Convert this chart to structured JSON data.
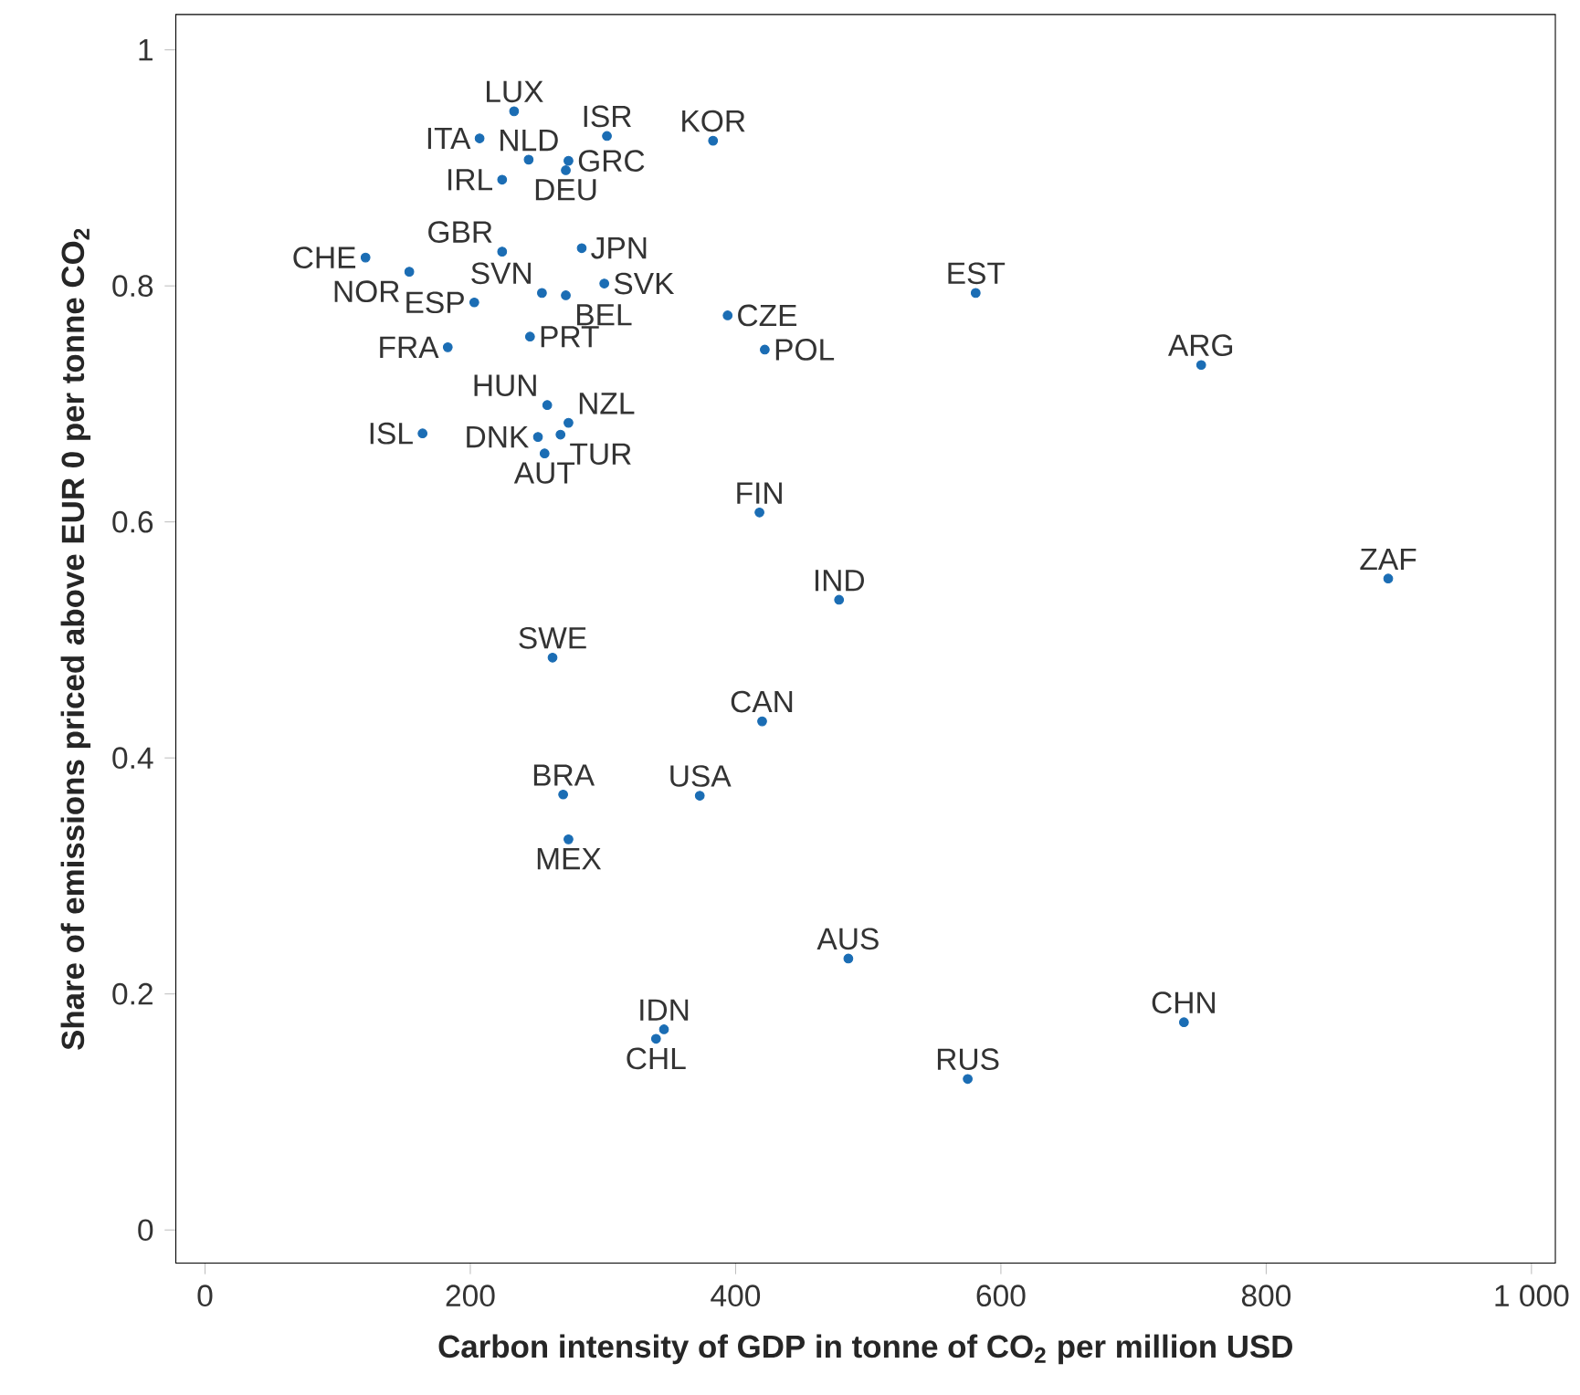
{
  "chart_data": {
    "type": "scatter",
    "xlabel": "Carbon intensity of GDP in tonne of CO$_{2}$ per million USD",
    "ylabel": "Share of emissions priced above EUR 0 per tonne CO$_{2}$",
    "xlim": [
      -22,
      1018
    ],
    "ylim": [
      -0.028,
      1.03
    ],
    "xticks": [
      0,
      200,
      400,
      600,
      800,
      {
        "value": 1000,
        "label": "1 000"
      }
    ],
    "yticks": [
      0,
      0.2,
      0.4,
      0.6,
      0.8,
      1
    ],
    "marker": "circle",
    "grid": false,
    "series": [
      {
        "color": "#1b6db4",
        "x": [
          233,
          207,
          244,
          303,
          383,
          274,
          272,
          224,
          121,
          224,
          284,
          154,
          301,
          254,
          272,
          203,
          394,
          183,
          245,
          422,
          258,
          274,
          164,
          251,
          268,
          256,
          418,
          581,
          751,
          478,
          892,
          262,
          420,
          270,
          373,
          274,
          485,
          346,
          340,
          575,
          738
        ],
        "values": [
          0.948,
          0.925,
          0.907,
          0.927,
          0.923,
          0.906,
          0.898,
          0.89,
          0.824,
          0.829,
          0.832,
          0.812,
          0.802,
          0.794,
          0.792,
          0.786,
          0.775,
          0.748,
          0.757,
          0.746,
          0.699,
          0.684,
          0.675,
          0.672,
          0.674,
          0.658,
          0.608,
          0.794,
          0.733,
          0.534,
          0.552,
          0.485,
          0.431,
          0.369,
          0.368,
          0.331,
          0.23,
          0.17,
          0.162,
          0.128,
          0.176
        ]
      }
    ],
    "annotations": [
      {
        "text": "LUX",
        "x": 233,
        "y": 0.948
      },
      {
        "text": "ITA",
        "x": 207,
        "y": 0.925
      },
      {
        "text": "NLD",
        "x": 244,
        "y": 0.907
      },
      {
        "text": "ISR",
        "x": 303,
        "y": 0.927
      },
      {
        "text": "KOR",
        "x": 383,
        "y": 0.923
      },
      {
        "text": "GRC",
        "x": 274,
        "y": 0.906
      },
      {
        "text": "DEU",
        "x": 272,
        "y": 0.898
      },
      {
        "text": "IRL",
        "x": 224,
        "y": 0.89
      },
      {
        "text": "CHE",
        "x": 121,
        "y": 0.824
      },
      {
        "text": "GBR",
        "x": 224,
        "y": 0.829
      },
      {
        "text": "JPN",
        "x": 284,
        "y": 0.832
      },
      {
        "text": "NOR",
        "x": 154,
        "y": 0.812
      },
      {
        "text": "SVK",
        "x": 301,
        "y": 0.802
      },
      {
        "text": "SVN",
        "x": 254,
        "y": 0.794
      },
      {
        "text": "BEL",
        "x": 272,
        "y": 0.792
      },
      {
        "text": "ESP",
        "x": 203,
        "y": 0.786
      },
      {
        "text": "CZE",
        "x": 394,
        "y": 0.775
      },
      {
        "text": "FRA",
        "x": 183,
        "y": 0.748
      },
      {
        "text": "PRT",
        "x": 245,
        "y": 0.757
      },
      {
        "text": "POL",
        "x": 422,
        "y": 0.746
      },
      {
        "text": "HUN",
        "x": 258,
        "y": 0.699
      },
      {
        "text": "NZL",
        "x": 274,
        "y": 0.684
      },
      {
        "text": "ISL",
        "x": 164,
        "y": 0.675
      },
      {
        "text": "DNK",
        "x": 251,
        "y": 0.672
      },
      {
        "text": "TUR",
        "x": 268,
        "y": 0.674
      },
      {
        "text": "AUT",
        "x": 256,
        "y": 0.658
      },
      {
        "text": "FIN",
        "x": 418,
        "y": 0.608
      },
      {
        "text": "EST",
        "x": 581,
        "y": 0.794
      },
      {
        "text": "ARG",
        "x": 751,
        "y": 0.733
      },
      {
        "text": "IND",
        "x": 478,
        "y": 0.534
      },
      {
        "text": "ZAF",
        "x": 892,
        "y": 0.552
      },
      {
        "text": "SWE",
        "x": 262,
        "y": 0.485
      },
      {
        "text": "CAN",
        "x": 420,
        "y": 0.431
      },
      {
        "text": "BRA",
        "x": 270,
        "y": 0.369
      },
      {
        "text": "USA",
        "x": 373,
        "y": 0.368
      },
      {
        "text": "MEX",
        "x": 274,
        "y": 0.331
      },
      {
        "text": "AUS",
        "x": 485,
        "y": 0.23
      },
      {
        "text": "IDN",
        "x": 346,
        "y": 0.17
      },
      {
        "text": "CHL",
        "x": 340,
        "y": 0.162
      },
      {
        "text": "RUS",
        "x": 575,
        "y": 0.128
      },
      {
        "text": "CHN",
        "x": 738,
        "y": 0.176
      }
    ]
  }
}
